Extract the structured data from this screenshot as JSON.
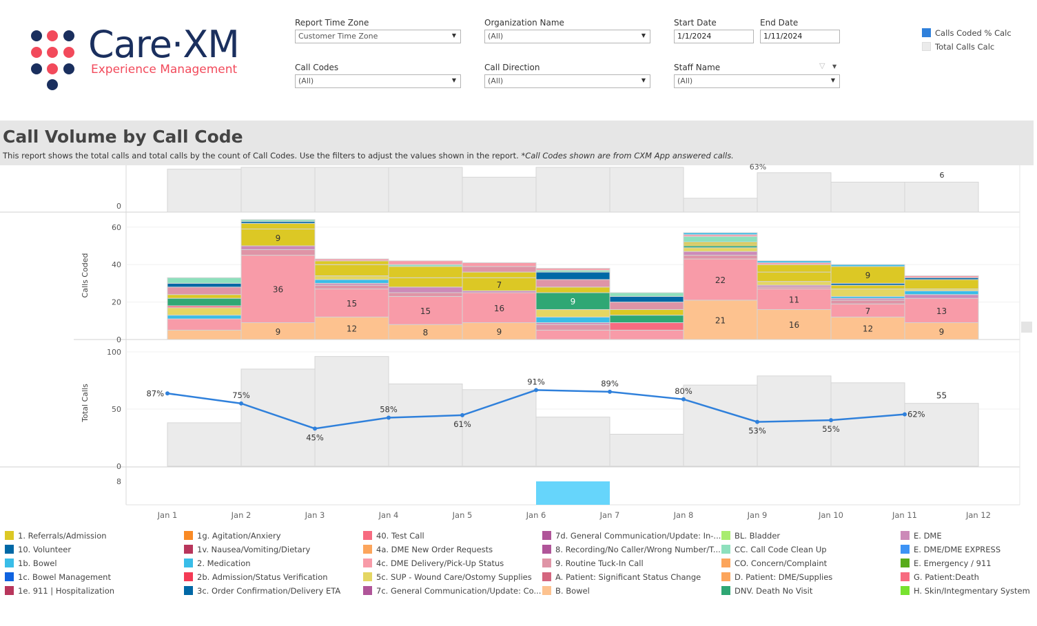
{
  "logo": {
    "main": "Care·XM",
    "sub": "Experience Management",
    "colors": {
      "navy": "#1a2f5e",
      "coral": "#f24a5b"
    }
  },
  "filters": {
    "report_time_zone": {
      "label": "Report Time Zone",
      "value": "Customer Time Zone"
    },
    "organization_name": {
      "label": "Organization Name",
      "value": "(All)"
    },
    "start_date": {
      "label": "Start Date",
      "value": "1/1/2024"
    },
    "end_date": {
      "label": "End Date",
      "value": "1/11/2024"
    },
    "call_codes": {
      "label": "Call Codes",
      "value": "(All)"
    },
    "call_direction": {
      "label": "Call Direction",
      "value": "(All)"
    },
    "staff_name": {
      "label": "Staff Name",
      "value": "(All)"
    }
  },
  "measure_legend": [
    {
      "label": "Calls Coded % Calc",
      "color": "#2f80db"
    },
    {
      "label": "Total Calls Calc",
      "color": "#ebebeb"
    }
  ],
  "header": {
    "title": "Call Volume by Call Code",
    "subtitle": "This report shows the total calls and total calls by the count of Call Codes. Use the filters to adjust the values shown in the report.",
    "subtitle_note": "*Call Codes shown are from CXM App answered calls."
  },
  "chart_data": {
    "type": "bar",
    "x_ticks": [
      "Jan 1",
      "Jan 2",
      "Jan 3",
      "Jan 4",
      "Jan 5",
      "Jan 6",
      "Jan 7",
      "Jan 8",
      "Jan 9",
      "Jan 10",
      "Jan 11",
      "Jan 12"
    ],
    "top_panel": {
      "y_ticks": [
        "0"
      ],
      "values": [
        96,
        100,
        100,
        100,
        78,
        100,
        100,
        31,
        88,
        67,
        67
      ],
      "labels": [
        "63%",
        "6"
      ]
    },
    "calls_coded": {
      "ylabel": "Calls Coded",
      "y_ticks": [
        "0",
        "20",
        "40",
        "60"
      ],
      "ylim": [
        0,
        68
      ],
      "stacks": [
        [
          [
            "B. Bowel",
            5
          ],
          [
            "4c. DME Delivery/Pick-Up Status",
            6
          ],
          [
            "2. Medication",
            2
          ],
          [
            "5c. SUP - Wound Care/Ostomy Supplies",
            4
          ],
          [
            "G. Patient:Death",
            1
          ],
          [
            "DNV. Death No Visit",
            4
          ],
          [
            "1. Referrals/Admission",
            2
          ],
          [
            "9. Routine Tuck-In Call",
            4
          ],
          [
            "10. Volunteer",
            2
          ],
          [
            "CC. Call Code Clean Up",
            3
          ]
        ],
        [
          [
            "B. Bowel",
            9
          ],
          [
            "4c. DME Delivery/Pick-Up Status",
            36
          ],
          [
            "9. Routine Tuck-In Call",
            3
          ],
          [
            "E. DME",
            2
          ],
          [
            "1. Referrals/Admission",
            9
          ],
          [
            "1. Referrals/Admission",
            3
          ],
          [
            "10. Volunteer",
            1
          ],
          [
            "CC. Call Code Clean Up",
            1
          ]
        ],
        [
          [
            "B. Bowel",
            12
          ],
          [
            "4c. DME Delivery/Pick-Up Status",
            15
          ],
          [
            "9. Routine Tuck-In Call",
            2
          ],
          [
            "E. DME",
            1
          ],
          [
            "2. Medication",
            2
          ],
          [
            "5c. SUP - Wound Care/Ostomy Supplies",
            2
          ],
          [
            "1. Referrals/Admission",
            6
          ],
          [
            "1. Referrals/Admission",
            2
          ],
          [
            "4c. DME Delivery/Pick-Up Status",
            1
          ]
        ],
        [
          [
            "B. Bowel",
            8
          ],
          [
            "4c. DME Delivery/Pick-Up Status",
            15
          ],
          [
            "9. Routine Tuck-In Call",
            2
          ],
          [
            "E. DME",
            3
          ],
          [
            "1. Referrals/Admission",
            5
          ],
          [
            "1. Referrals/Admission",
            6
          ],
          [
            "CC. Call Code Clean Up",
            1
          ],
          [
            "4c. DME Delivery/Pick-Up Status",
            2
          ]
        ],
        [
          [
            "B. Bowel",
            9
          ],
          [
            "4c. DME Delivery/Pick-Up Status",
            16
          ],
          [
            "E. DME",
            1
          ],
          [
            "1. Referrals/Admission",
            7
          ],
          [
            "1. Referrals/Admission",
            3
          ],
          [
            "9. Routine Tuck-In Call",
            3
          ],
          [
            "4c. DME Delivery/Pick-Up Status",
            2
          ]
        ],
        [
          [
            "4c. DME Delivery/Pick-Up Status",
            5
          ],
          [
            "9. Routine Tuck-In Call",
            3
          ],
          [
            "E. DME",
            1
          ],
          [
            "2. Medication",
            3
          ],
          [
            "5c. SUP - Wound Care/Ostomy Supplies",
            4
          ],
          [
            "DNV. Death No Visit",
            9
          ],
          [
            "1. Referrals/Admission",
            3
          ],
          [
            "9. Routine Tuck-In Call",
            4
          ],
          [
            "10. Volunteer",
            4
          ],
          [
            "CC. Call Code Clean Up",
            1
          ],
          [
            "4c. DME Delivery/Pick-Up Status",
            1
          ]
        ],
        [
          [
            "4c. DME Delivery/Pick-Up Status",
            5
          ],
          [
            "G. Patient:Death",
            4
          ],
          [
            "DNV. Death No Visit",
            4
          ],
          [
            "1. Referrals/Admission",
            3
          ],
          [
            "9. Routine Tuck-In Call",
            4
          ],
          [
            "10. Volunteer",
            3
          ],
          [
            "CC. Call Code Clean Up",
            2
          ]
        ],
        [
          [
            "B. Bowel",
            21
          ],
          [
            "4c. DME Delivery/Pick-Up Status",
            22
          ],
          [
            "9. Routine Tuck-In Call",
            2
          ],
          [
            "E. DME",
            2
          ],
          [
            "5c. SUP - Wound Care/Ostomy Supplies",
            2
          ],
          [
            "DNV. Death No Visit",
            1
          ],
          [
            "1. Referrals/Admission",
            1
          ],
          [
            "1. Referrals/Admission",
            1
          ],
          [
            "CC. Call Code Clean Up",
            3
          ],
          [
            "4c. DME Delivery/Pick-Up Status",
            1
          ],
          [
            "2. Medication",
            1
          ]
        ],
        [
          [
            "B. Bowel",
            16
          ],
          [
            "4c. DME Delivery/Pick-Up Status",
            11
          ],
          [
            "9. Routine Tuck-In Call",
            1
          ],
          [
            "E. DME",
            1
          ],
          [
            "5c. SUP - Wound Care/Ostomy Supplies",
            2
          ],
          [
            "1. Referrals/Admission",
            5
          ],
          [
            "1. Referrals/Admission",
            4
          ],
          [
            "4c. DME Delivery/Pick-Up Status",
            1
          ],
          [
            "2. Medication",
            1
          ]
        ],
        [
          [
            "B. Bowel",
            12
          ],
          [
            "4c. DME Delivery/Pick-Up Status",
            7
          ],
          [
            "9. Routine Tuck-In Call",
            2
          ],
          [
            "E. DME",
            1
          ],
          [
            "2. Medication",
            1
          ],
          [
            "5c. SUP - Wound Care/Ostomy Supplies",
            4
          ],
          [
            "1. Referrals/Admission",
            2
          ],
          [
            "10. Volunteer",
            1
          ],
          [
            "1. Referrals/Admission",
            9
          ],
          [
            "2. Medication",
            1
          ]
        ],
        [
          [
            "B. Bowel",
            9
          ],
          [
            "4c. DME Delivery/Pick-Up Status",
            13
          ],
          [
            "E. DME",
            2
          ],
          [
            "2. Medication",
            2
          ],
          [
            "5c. SUP - Wound Care/Ostomy Supplies",
            1
          ],
          [
            "1. Referrals/Admission",
            5
          ],
          [
            "10. Volunteer",
            1
          ],
          [
            "4c. DME Delivery/Pick-Up Status",
            1
          ]
        ]
      ]
    },
    "total_calls": {
      "ylabel": "Total Calls",
      "y_ticks": [
        "0",
        "50",
        "100"
      ],
      "ylim": [
        0,
        100
      ],
      "values": [
        38,
        85,
        96,
        72,
        67,
        43,
        28,
        71,
        79,
        73,
        55
      ],
      "value_labels": {
        "10": "55"
      },
      "calls_coded_pct": [
        87,
        75,
        45,
        58,
        61,
        91,
        89,
        80,
        53,
        55,
        62
      ],
      "pct_labels": [
        "87%",
        "75%",
        "45%",
        "58%",
        "61%",
        "91%",
        "89%",
        "80%",
        "53%",
        "55%",
        "62%"
      ],
      "line_color": "#2f80db",
      "bar_color": "#ebebeb"
    },
    "bottom_panel": {
      "y_ticks": [
        "8"
      ],
      "bar_day_index": 5,
      "value": 8,
      "color": "#66d5fb"
    }
  },
  "legend": [
    {
      "label": "1. Referrals/Admission",
      "color": "#dcc825"
    },
    {
      "label": "10. Volunteer",
      "color": "#0068a6"
    },
    {
      "label": "1b. Bowel",
      "color": "#39bde8"
    },
    {
      "label": "1c. Bowel Management",
      "color": "#0f63e0"
    },
    {
      "label": "1e. 911 | Hospitalization",
      "color": "#b8365c"
    },
    {
      "label": "1g. Agitation/Anxiery",
      "color": "#f98a25"
    },
    {
      "label": "1v. Nausea/Vomiting/Dietary",
      "color": "#b8365c"
    },
    {
      "label": "2. Medication",
      "color": "#39bde8"
    },
    {
      "label": "2b. Admission/Status Verification",
      "color": "#f43a55"
    },
    {
      "label": "3c. Order Confirmation/Delivery ETA",
      "color": "#0068a6"
    },
    {
      "label": "40. Test Call",
      "color": "#f76b80"
    },
    {
      "label": "4a. DME New Order Requests",
      "color": "#fca55c"
    },
    {
      "label": "4c. DME Delivery/Pick-Up Status",
      "color": "#f89ba8"
    },
    {
      "label": "5c. SUP - Wound Care/Ostomy Supplies",
      "color": "#e4d662"
    },
    {
      "label": "7c. General Communication/Update: Co...",
      "color": "#b05599"
    },
    {
      "label": "7d. General Communication/Update: In-...",
      "color": "#b05599"
    },
    {
      "label": "8. Recording/No Caller/Wrong Number/T...",
      "color": "#b05599"
    },
    {
      "label": "9. Routine Tuck-In Call",
      "color": "#df94a6"
    },
    {
      "label": "A. Patient: Significant Status Change",
      "color": "#d4667f"
    },
    {
      "label": "B. Bowel",
      "color": "#fdc28f"
    },
    {
      "label": "BL. Bladder",
      "color": "#a8ec6f"
    },
    {
      "label": "CC. Call Code Clean Up",
      "color": "#8ee0bd"
    },
    {
      "label": "CO. Concern/Complaint",
      "color": "#fca55c"
    },
    {
      "label": "D. Patient: DME/Supplies",
      "color": "#fca55c"
    },
    {
      "label": "DNV. Death No Visit",
      "color": "#2fa774"
    },
    {
      "label": "E. DME",
      "color": "#cc8ab8"
    },
    {
      "label": "E. DME/DME EXPRESS",
      "color": "#3d93f5"
    },
    {
      "label": "E. Emergency / 911",
      "color": "#58ab1a"
    },
    {
      "label": "G. Patient:Death",
      "color": "#f76b80"
    },
    {
      "label": "H. Skin/Integmentary System",
      "color": "#77e22f"
    }
  ]
}
